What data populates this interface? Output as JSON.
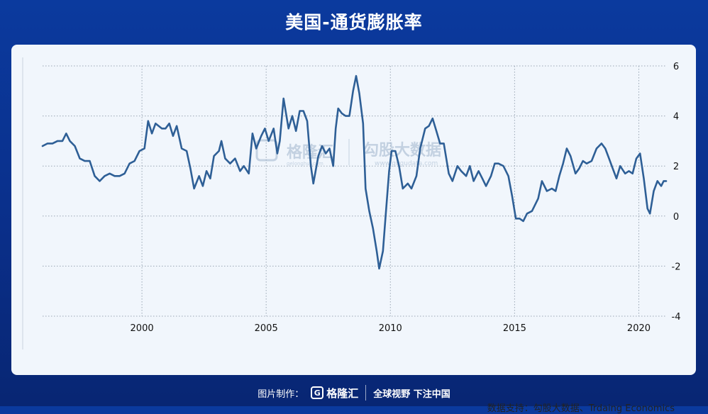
{
  "title": "美国-通货膨胀率",
  "source": "数据支持：勾股大数据、Trdaing Economics",
  "footer": {
    "credit": "图片制作：",
    "logo_mark": "G",
    "logo_text": "格隆汇",
    "slogan": "全球视野 下注中国"
  },
  "watermarks": {
    "left_main": "格隆汇",
    "left_sub": "gelonghui.com",
    "right_main": "勾股大数据",
    "right_sub": "www.gugudata.com"
  },
  "chart_data": {
    "type": "line",
    "title": "美国-通货膨胀率",
    "xlabel": "",
    "ylabel": "",
    "xlim": [
      1996.0,
      2021.1
    ],
    "ylim": [
      -4,
      6
    ],
    "y_ticks": [
      6,
      4,
      2,
      0,
      -2,
      -4
    ],
    "x_ticks": [
      2000,
      2005,
      2010,
      2015,
      2020
    ],
    "grid": true,
    "y_axis_side": "right",
    "series_color": "#2e5f96",
    "series": [
      {
        "points": [
          [
            1996.0,
            2.8
          ],
          [
            1996.2,
            2.9
          ],
          [
            1996.4,
            2.9
          ],
          [
            1996.6,
            3.0
          ],
          [
            1996.8,
            3.0
          ],
          [
            1996.95,
            3.3
          ],
          [
            1997.1,
            3.0
          ],
          [
            1997.3,
            2.8
          ],
          [
            1997.5,
            2.3
          ],
          [
            1997.7,
            2.2
          ],
          [
            1997.9,
            2.2
          ],
          [
            1998.1,
            1.6
          ],
          [
            1998.3,
            1.4
          ],
          [
            1998.5,
            1.6
          ],
          [
            1998.7,
            1.7
          ],
          [
            1998.9,
            1.6
          ],
          [
            1999.1,
            1.6
          ],
          [
            1999.3,
            1.7
          ],
          [
            1999.5,
            2.1
          ],
          [
            1999.7,
            2.2
          ],
          [
            1999.9,
            2.6
          ],
          [
            2000.1,
            2.7
          ],
          [
            2000.25,
            3.8
          ],
          [
            2000.4,
            3.3
          ],
          [
            2000.55,
            3.7
          ],
          [
            2000.8,
            3.5
          ],
          [
            2000.95,
            3.5
          ],
          [
            2001.1,
            3.7
          ],
          [
            2001.25,
            3.2
          ],
          [
            2001.4,
            3.6
          ],
          [
            2001.6,
            2.7
          ],
          [
            2001.8,
            2.6
          ],
          [
            2001.95,
            1.9
          ],
          [
            2002.1,
            1.1
          ],
          [
            2002.3,
            1.6
          ],
          [
            2002.45,
            1.2
          ],
          [
            2002.6,
            1.8
          ],
          [
            2002.75,
            1.5
          ],
          [
            2002.9,
            2.4
          ],
          [
            2003.1,
            2.6
          ],
          [
            2003.2,
            3.0
          ],
          [
            2003.35,
            2.3
          ],
          [
            2003.55,
            2.1
          ],
          [
            2003.75,
            2.3
          ],
          [
            2003.95,
            1.8
          ],
          [
            2004.1,
            2.0
          ],
          [
            2004.3,
            1.7
          ],
          [
            2004.45,
            3.3
          ],
          [
            2004.6,
            2.7
          ],
          [
            2004.8,
            3.2
          ],
          [
            2004.95,
            3.5
          ],
          [
            2005.1,
            3.0
          ],
          [
            2005.3,
            3.5
          ],
          [
            2005.45,
            2.5
          ],
          [
            2005.55,
            3.0
          ],
          [
            2005.7,
            4.7
          ],
          [
            2005.9,
            3.5
          ],
          [
            2006.05,
            4.0
          ],
          [
            2006.2,
            3.4
          ],
          [
            2006.35,
            4.2
          ],
          [
            2006.5,
            4.2
          ],
          [
            2006.65,
            3.8
          ],
          [
            2006.8,
            2.0
          ],
          [
            2006.9,
            1.3
          ],
          [
            2007.1,
            2.4
          ],
          [
            2007.25,
            2.8
          ],
          [
            2007.4,
            2.5
          ],
          [
            2007.55,
            2.7
          ],
          [
            2007.7,
            2.0
          ],
          [
            2007.8,
            3.5
          ],
          [
            2007.9,
            4.3
          ],
          [
            2008.05,
            4.1
          ],
          [
            2008.2,
            4.0
          ],
          [
            2008.35,
            4.0
          ],
          [
            2008.5,
            5.0
          ],
          [
            2008.62,
            5.6
          ],
          [
            2008.75,
            4.9
          ],
          [
            2008.9,
            3.7
          ],
          [
            2009.0,
            1.1
          ],
          [
            2009.15,
            0.2
          ],
          [
            2009.3,
            -0.5
          ],
          [
            2009.45,
            -1.4
          ],
          [
            2009.55,
            -2.1
          ],
          [
            2009.7,
            -1.4
          ],
          [
            2009.8,
            -0.1
          ],
          [
            2009.95,
            1.8
          ],
          [
            2010.05,
            2.6
          ],
          [
            2010.2,
            2.6
          ],
          [
            2010.35,
            2.0
          ],
          [
            2010.5,
            1.1
          ],
          [
            2010.7,
            1.3
          ],
          [
            2010.85,
            1.1
          ],
          [
            2011.05,
            1.6
          ],
          [
            2011.2,
            2.7
          ],
          [
            2011.4,
            3.5
          ],
          [
            2011.55,
            3.6
          ],
          [
            2011.7,
            3.9
          ],
          [
            2011.85,
            3.4
          ],
          [
            2012.0,
            2.9
          ],
          [
            2012.15,
            2.9
          ],
          [
            2012.35,
            1.7
          ],
          [
            2012.5,
            1.4
          ],
          [
            2012.7,
            2.0
          ],
          [
            2012.85,
            1.8
          ],
          [
            2013.05,
            1.6
          ],
          [
            2013.2,
            2.0
          ],
          [
            2013.35,
            1.4
          ],
          [
            2013.55,
            1.8
          ],
          [
            2013.7,
            1.5
          ],
          [
            2013.85,
            1.2
          ],
          [
            2014.05,
            1.6
          ],
          [
            2014.2,
            2.1
          ],
          [
            2014.35,
            2.1
          ],
          [
            2014.55,
            2.0
          ],
          [
            2014.75,
            1.6
          ],
          [
            2014.9,
            0.8
          ],
          [
            2015.05,
            -0.1
          ],
          [
            2015.2,
            -0.1
          ],
          [
            2015.35,
            -0.2
          ],
          [
            2015.5,
            0.1
          ],
          [
            2015.7,
            0.2
          ],
          [
            2015.85,
            0.5
          ],
          [
            2015.95,
            0.7
          ],
          [
            2016.1,
            1.4
          ],
          [
            2016.3,
            1.0
          ],
          [
            2016.5,
            1.1
          ],
          [
            2016.65,
            1.0
          ],
          [
            2016.8,
            1.6
          ],
          [
            2016.95,
            2.1
          ],
          [
            2017.1,
            2.7
          ],
          [
            2017.25,
            2.4
          ],
          [
            2017.45,
            1.7
          ],
          [
            2017.6,
            1.9
          ],
          [
            2017.75,
            2.2
          ],
          [
            2017.9,
            2.1
          ],
          [
            2018.1,
            2.2
          ],
          [
            2018.3,
            2.7
          ],
          [
            2018.5,
            2.9
          ],
          [
            2018.65,
            2.7
          ],
          [
            2018.8,
            2.3
          ],
          [
            2018.95,
            1.9
          ],
          [
            2019.1,
            1.5
          ],
          [
            2019.25,
            2.0
          ],
          [
            2019.45,
            1.7
          ],
          [
            2019.6,
            1.8
          ],
          [
            2019.75,
            1.7
          ],
          [
            2019.9,
            2.3
          ],
          [
            2020.05,
            2.5
          ],
          [
            2020.2,
            1.5
          ],
          [
            2020.35,
            0.3
          ],
          [
            2020.45,
            0.1
          ],
          [
            2020.6,
            1.0
          ],
          [
            2020.75,
            1.4
          ],
          [
            2020.9,
            1.2
          ],
          [
            2021.0,
            1.4
          ],
          [
            2021.1,
            1.4
          ]
        ]
      }
    ]
  }
}
